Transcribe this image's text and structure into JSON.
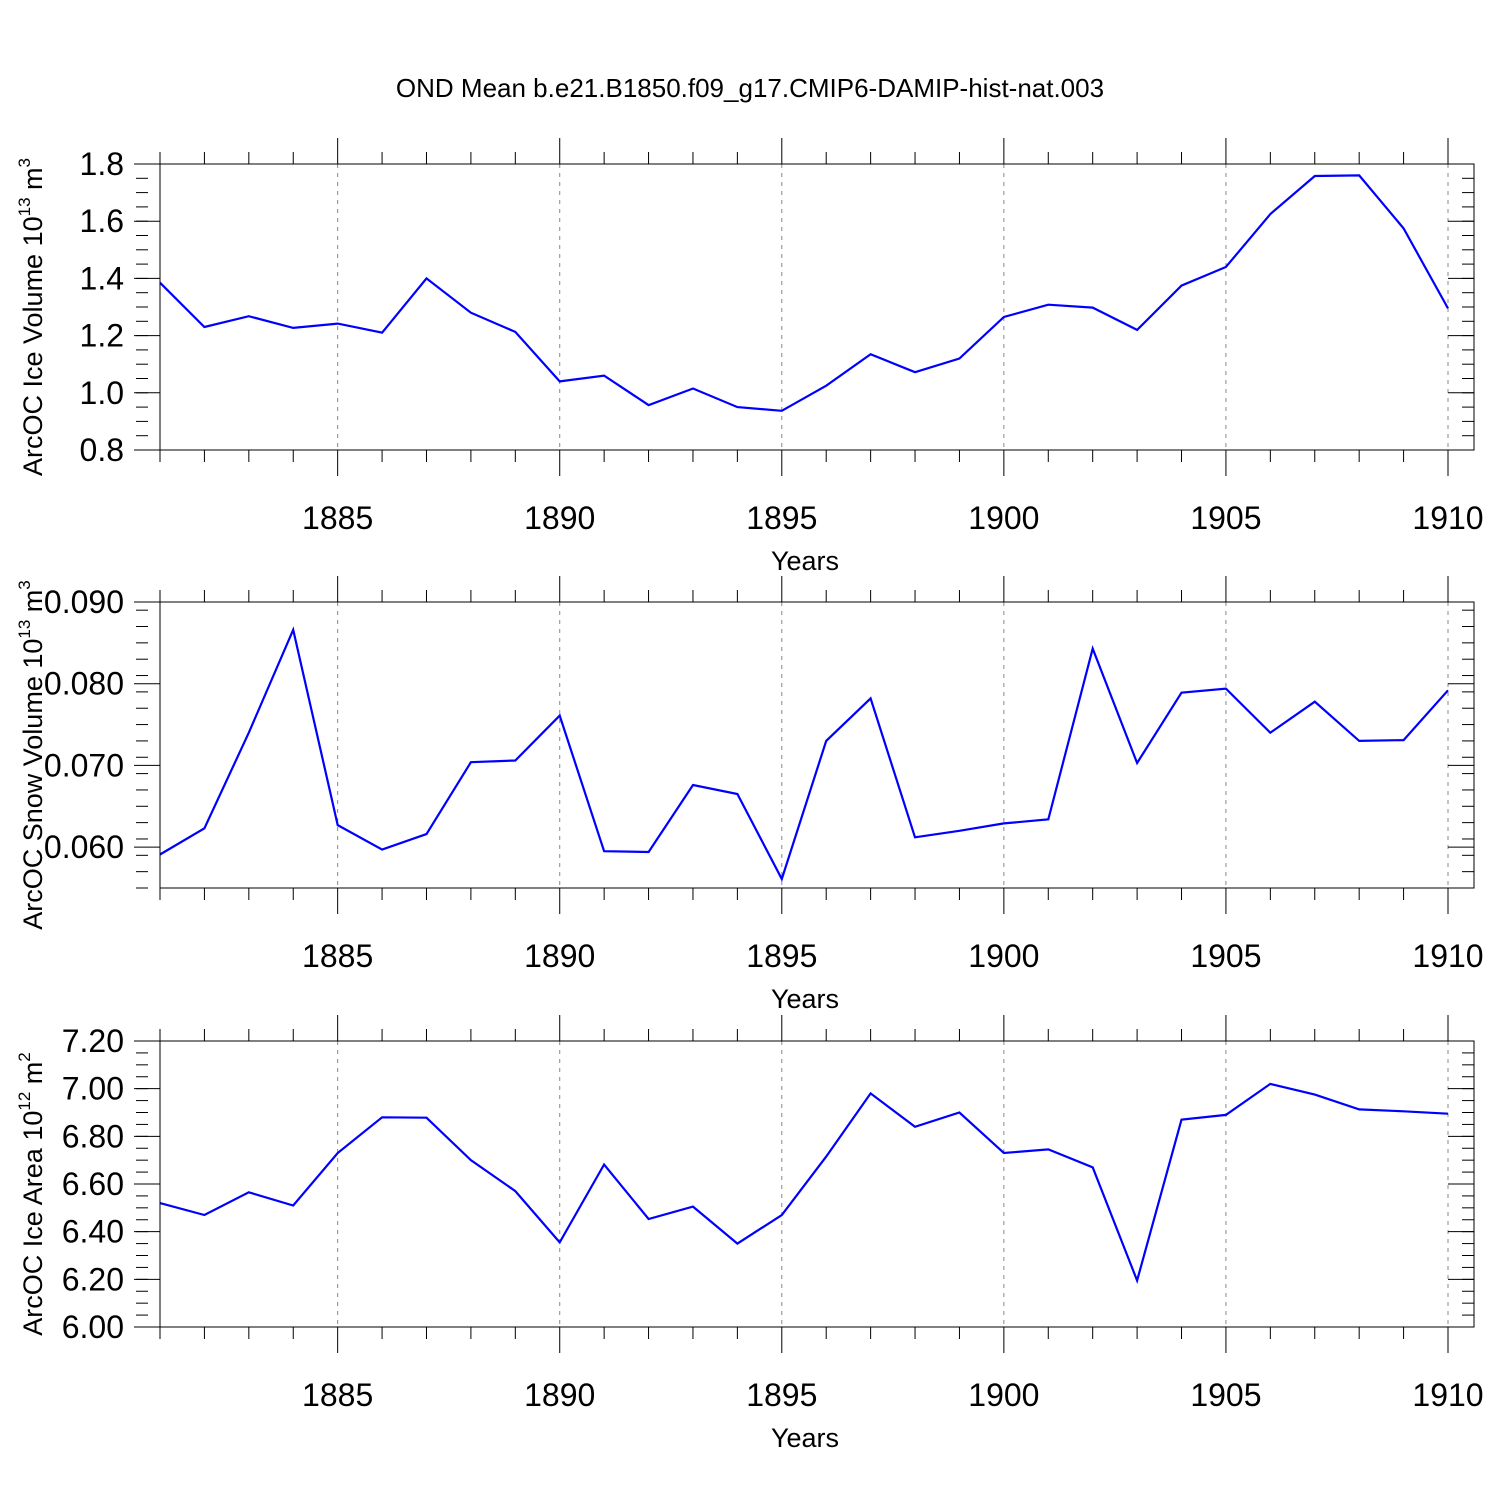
{
  "title": "OND Mean b.e21.B1850.f09_g17.CMIP6-DAMIP-hist-nat.003",
  "colors": {
    "line": "#0000ff",
    "grid": "#888888",
    "axis": "#000000"
  },
  "chart_data": [
    {
      "type": "line",
      "ylabel": "ArcOC Ice Volume 10",
      "ylabel_exp": "13",
      "ylabel_unit": " m",
      "ylabel_unit_exp": "3",
      "xlabel": "Years",
      "xlim": [
        1881,
        1910
      ],
      "ylim": [
        0.8,
        1.8
      ],
      "yticks": [
        0.8,
        1.0,
        1.2,
        1.4,
        1.6,
        1.8
      ],
      "ytick_labels": [
        "0.8",
        "1.0",
        "1.2",
        "1.4",
        "1.6",
        "1.8"
      ],
      "ytick_minor_step": 0.05,
      "xticks": [
        1885,
        1890,
        1895,
        1900,
        1905,
        1910
      ],
      "xtick_labels": [
        "1885",
        "1890",
        "1895",
        "1900",
        "1905",
        "1910"
      ],
      "x": [
        1881,
        1882,
        1883,
        1884,
        1885,
        1886,
        1887,
        1888,
        1889,
        1890,
        1891,
        1892,
        1893,
        1894,
        1895,
        1896,
        1897,
        1898,
        1899,
        1900,
        1901,
        1902,
        1903,
        1904,
        1905,
        1906,
        1907,
        1908,
        1909,
        1910
      ],
      "values": [
        1.385,
        1.23,
        1.268,
        1.227,
        1.242,
        1.21,
        1.4,
        1.28,
        1.213,
        1.04,
        1.06,
        0.957,
        1.015,
        0.95,
        0.937,
        1.025,
        1.135,
        1.072,
        1.12,
        1.265,
        1.308,
        1.298,
        1.22,
        1.375,
        1.44,
        1.625,
        1.758,
        1.76,
        1.575,
        1.295
      ]
    },
    {
      "type": "line",
      "ylabel": "ArcOC Snow Volume 10",
      "ylabel_exp": "13",
      "ylabel_unit": " m",
      "ylabel_unit_exp": "3",
      "xlabel": "Years",
      "xlim": [
        1881,
        1910
      ],
      "ylim": [
        0.055,
        0.09
      ],
      "yticks": [
        0.06,
        0.07,
        0.08,
        0.09
      ],
      "ytick_labels": [
        "0.060",
        "0.070",
        "0.080",
        "0.090"
      ],
      "ytick_minor_step": 0.002,
      "xticks": [
        1885,
        1890,
        1895,
        1900,
        1905,
        1910
      ],
      "xtick_labels": [
        "1885",
        "1890",
        "1895",
        "1900",
        "1905",
        "1910"
      ],
      "x": [
        1881,
        1882,
        1883,
        1884,
        1885,
        1886,
        1887,
        1888,
        1889,
        1890,
        1891,
        1892,
        1893,
        1894,
        1895,
        1896,
        1897,
        1898,
        1899,
        1900,
        1901,
        1902,
        1903,
        1904,
        1905,
        1906,
        1907,
        1908,
        1909,
        1910
      ],
      "values": [
        0.0591,
        0.0623,
        0.074,
        0.0866,
        0.0627,
        0.0597,
        0.0616,
        0.0704,
        0.0706,
        0.0761,
        0.0595,
        0.0594,
        0.0676,
        0.0665,
        0.0561,
        0.073,
        0.0782,
        0.0612,
        0.062,
        0.0629,
        0.0634,
        0.0843,
        0.0703,
        0.0789,
        0.0794,
        0.074,
        0.0778,
        0.073,
        0.0731,
        0.0792
      ]
    },
    {
      "type": "line",
      "ylabel": "ArcOC Ice Area 10",
      "ylabel_exp": "12",
      "ylabel_unit": " m",
      "ylabel_unit_exp": "2",
      "xlabel": "Years",
      "xlim": [
        1881,
        1910
      ],
      "ylim": [
        6.0,
        7.2
      ],
      "yticks": [
        6.0,
        6.2,
        6.4,
        6.6,
        6.8,
        7.0,
        7.2
      ],
      "ytick_labels": [
        "6.00",
        "6.20",
        "6.40",
        "6.60",
        "6.80",
        "7.00",
        "7.20"
      ],
      "ytick_minor_step": 0.05,
      "xticks": [
        1885,
        1890,
        1895,
        1900,
        1905,
        1910
      ],
      "xtick_labels": [
        "1885",
        "1890",
        "1895",
        "1900",
        "1905",
        "1910"
      ],
      "x": [
        1881,
        1882,
        1883,
        1884,
        1885,
        1886,
        1887,
        1888,
        1889,
        1890,
        1891,
        1892,
        1893,
        1894,
        1895,
        1896,
        1897,
        1898,
        1899,
        1900,
        1901,
        1902,
        1903,
        1904,
        1905,
        1906,
        1907,
        1908,
        1909,
        1910
      ],
      "values": [
        6.52,
        6.47,
        6.565,
        6.51,
        6.73,
        6.88,
        6.878,
        6.7,
        6.57,
        6.355,
        6.682,
        6.453,
        6.505,
        6.35,
        6.47,
        6.715,
        6.98,
        6.84,
        6.9,
        6.73,
        6.745,
        6.67,
        6.195,
        6.87,
        6.89,
        7.02,
        6.975,
        6.913,
        6.905,
        6.895
      ]
    }
  ]
}
